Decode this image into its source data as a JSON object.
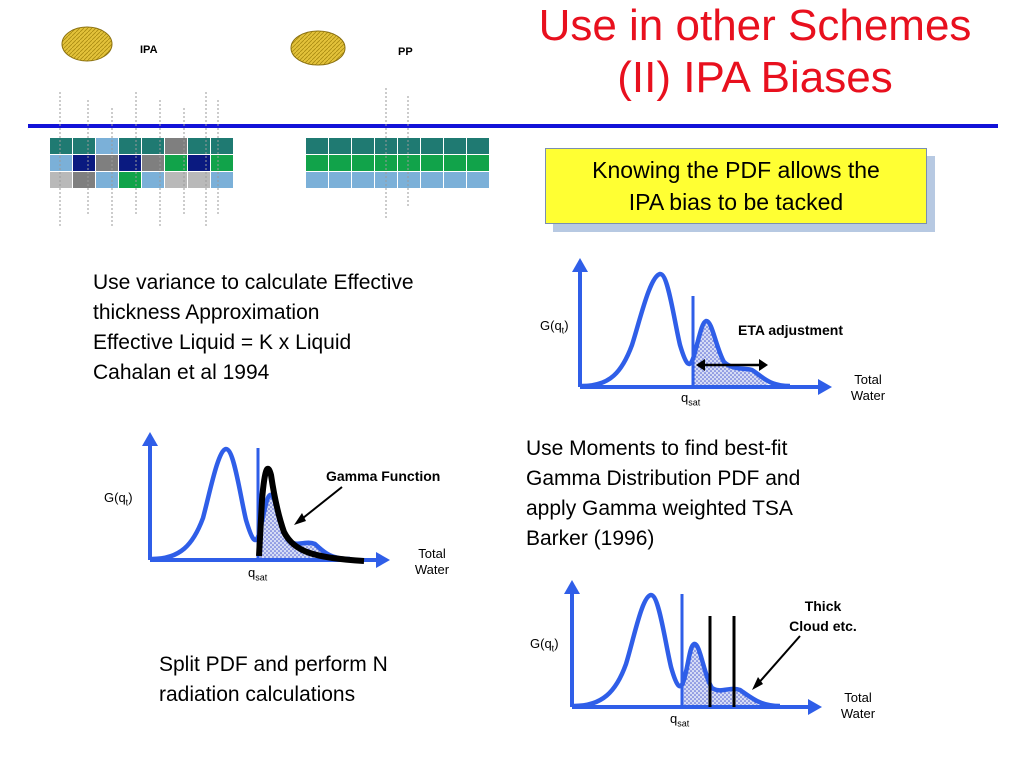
{
  "title": {
    "line1": "Use in other Schemes",
    "line2": "(II) IPA Biases"
  },
  "callout": {
    "line1": "Knowing the PDF allows the",
    "line2": "IPA bias to be tacked"
  },
  "ipa_label": "IPA",
  "pp_label": "PP",
  "text_eta": {
    "line1": "Use variance to calculate Effective",
    "line2": "thickness Approximation",
    "line3": "Effective Liquid = K x Liquid",
    "line4": "Cahalan et al 1994"
  },
  "text_gamma": {
    "line1": "Use Moments to find best-fit",
    "line2": "Gamma Distribution PDF and",
    "line3": "apply Gamma weighted TSA",
    "line4": "Barker (1996)"
  },
  "text_split": {
    "line1": "Split PDF and perform N",
    "line2": "radiation calculations"
  },
  "plot_labels": {
    "y_main": "G(q",
    "y_sub": "t",
    "y_close": ")",
    "x_main": "q",
    "x_sub": "sat",
    "total": "Total",
    "water": "Water"
  },
  "annotations": {
    "eta": "ETA adjustment",
    "gamma": "Gamma Function",
    "thick_line1": "Thick",
    "thick_line2": "Cloud etc."
  },
  "colors": {
    "title": "#e8101e",
    "rule": "#1212d8",
    "callout_bg": "#ffff33",
    "curve": "#2f5ee8",
    "axis": "#2f5ee8",
    "sun": "#d9b830",
    "grid_teal": "#1f7a72",
    "grid_green": "#11a34a",
    "grid_lightblue": "#7bb0d8",
    "grid_navy": "#0a1a80",
    "grid_gray": "#7f7f7f",
    "grid_lightgray": "#b9b9b9"
  }
}
